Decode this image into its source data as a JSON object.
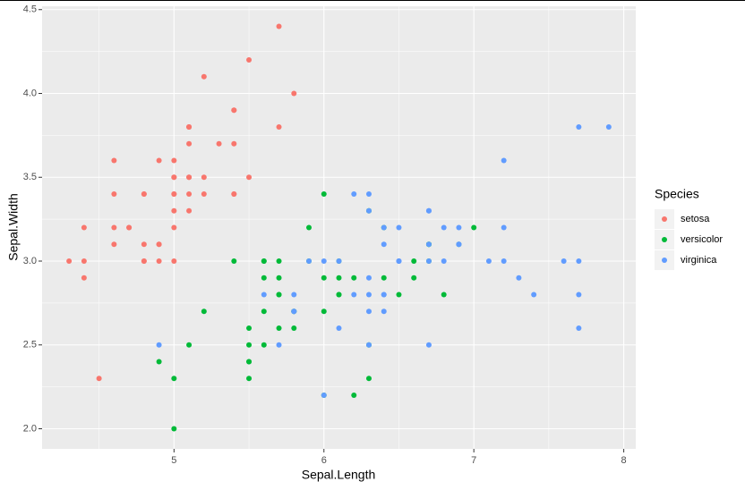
{
  "chart_data": {
    "type": "scatter",
    "x_label": "Sepal.Length",
    "y_label": "Sepal.Width",
    "legend_title": "Species",
    "xlim": [
      4.12,
      8.08
    ],
    "ylim": [
      1.88,
      4.52
    ],
    "xticks": [
      5,
      6,
      7,
      8
    ],
    "yticks": [
      {
        "value": 2,
        "label": "2.0"
      },
      2.5,
      {
        "value": 3,
        "label": "3.0"
      },
      3.5,
      {
        "value": 4,
        "label": "4.0"
      },
      4.5
    ],
    "grid": true,
    "minor_grid": true,
    "legend_position": "right",
    "series": [
      {
        "name": "setosa",
        "color": "#f8766d",
        "x": [
          5.1,
          4.9,
          4.7,
          4.6,
          5.0,
          5.4,
          4.6,
          5.0,
          4.4,
          4.9,
          5.4,
          4.8,
          4.8,
          4.3,
          5.8,
          5.7,
          5.4,
          5.1,
          5.7,
          5.1,
          5.4,
          5.1,
          4.6,
          5.1,
          4.8,
          5.0,
          5.0,
          5.2,
          5.2,
          4.7,
          4.8,
          5.4,
          5.2,
          5.5,
          4.9,
          5.0,
          5.5,
          4.9,
          4.4,
          5.1,
          5.0,
          4.5,
          4.4,
          5.0,
          5.1,
          4.8,
          5.1,
          4.6,
          5.3,
          5.0
        ],
        "y": [
          3.5,
          3.0,
          3.2,
          3.1,
          3.6,
          3.9,
          3.4,
          3.4,
          2.9,
          3.1,
          3.7,
          3.4,
          3.0,
          3.0,
          4.0,
          4.4,
          3.9,
          3.5,
          3.8,
          3.8,
          3.4,
          3.7,
          3.6,
          3.3,
          3.4,
          3.0,
          3.4,
          3.5,
          3.4,
          3.2,
          3.1,
          3.4,
          4.1,
          4.2,
          3.1,
          3.2,
          3.5,
          3.6,
          3.0,
          3.4,
          3.5,
          2.3,
          3.2,
          3.5,
          3.8,
          3.0,
          3.8,
          3.2,
          3.7,
          3.3
        ]
      },
      {
        "name": "versicolor",
        "color": "#00ba38",
        "x": [
          7.0,
          6.4,
          6.9,
          5.5,
          6.5,
          5.7,
          6.3,
          4.9,
          6.6,
          5.2,
          5.0,
          5.9,
          6.0,
          6.1,
          5.6,
          6.7,
          5.6,
          5.8,
          6.2,
          5.6,
          5.9,
          6.1,
          6.3,
          6.1,
          6.4,
          6.6,
          6.8,
          6.7,
          6.0,
          5.7,
          5.5,
          5.5,
          5.8,
          6.0,
          5.4,
          6.0,
          6.7,
          6.3,
          5.6,
          5.5,
          5.5,
          6.1,
          5.8,
          5.0,
          5.6,
          5.7,
          5.7,
          6.2,
          5.1,
          5.7
        ],
        "y": [
          3.2,
          3.2,
          3.1,
          2.3,
          2.8,
          2.8,
          3.3,
          2.4,
          2.9,
          2.7,
          2.0,
          3.0,
          2.2,
          2.9,
          2.9,
          3.1,
          3.0,
          2.7,
          2.2,
          2.5,
          3.2,
          2.8,
          2.5,
          2.8,
          2.9,
          3.0,
          2.8,
          3.0,
          2.9,
          2.6,
          2.4,
          2.4,
          2.7,
          2.7,
          3.0,
          3.4,
          3.1,
          2.3,
          3.0,
          2.5,
          2.6,
          3.0,
          2.6,
          2.3,
          2.7,
          3.0,
          2.9,
          2.9,
          2.5,
          2.8
        ]
      },
      {
        "name": "virginica",
        "color": "#619cff",
        "x": [
          6.3,
          5.8,
          7.1,
          6.3,
          6.5,
          7.6,
          4.9,
          7.3,
          6.7,
          7.2,
          6.5,
          6.4,
          6.8,
          5.7,
          5.8,
          6.4,
          6.5,
          7.7,
          7.7,
          6.0,
          6.9,
          5.6,
          7.7,
          6.3,
          6.7,
          7.2,
          6.2,
          6.1,
          6.4,
          7.2,
          7.4,
          7.9,
          6.4,
          6.3,
          6.1,
          7.7,
          6.3,
          6.4,
          6.0,
          6.9,
          6.7,
          6.9,
          5.8,
          6.8,
          6.7,
          6.7,
          6.3,
          6.5,
          6.2,
          5.9
        ],
        "y": [
          3.3,
          2.7,
          3.0,
          2.9,
          3.0,
          3.0,
          2.5,
          2.9,
          2.5,
          3.6,
          3.2,
          2.7,
          3.0,
          2.5,
          2.8,
          3.2,
          3.0,
          3.8,
          2.6,
          2.2,
          3.2,
          2.8,
          2.8,
          2.7,
          3.3,
          3.2,
          2.8,
          3.0,
          2.8,
          3.0,
          2.8,
          3.8,
          2.8,
          2.8,
          2.6,
          3.0,
          3.4,
          3.1,
          3.0,
          3.1,
          3.1,
          3.1,
          2.7,
          3.2,
          3.3,
          3.0,
          2.5,
          3.0,
          3.4,
          3.0
        ]
      }
    ]
  }
}
